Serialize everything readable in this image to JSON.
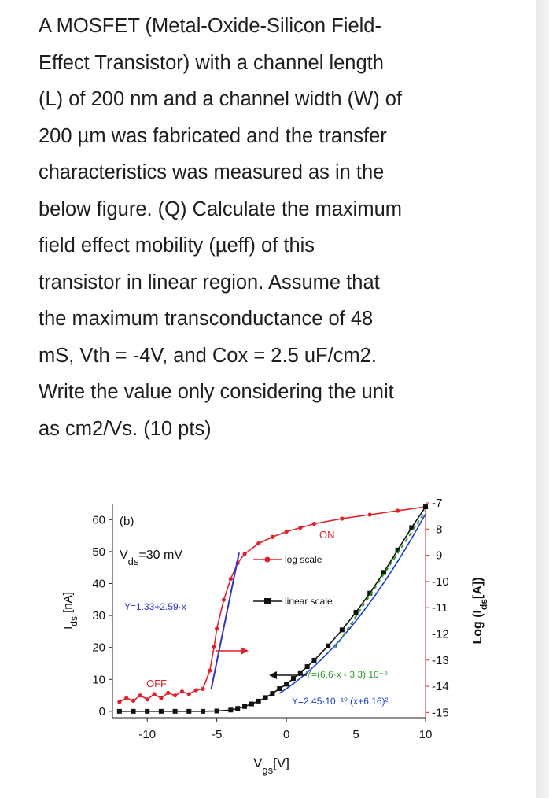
{
  "question": {
    "lines": [
      "A MOSFET (Metal-Oxide-Silicon Field-",
      "Effect Transistor) with a channel length",
      "(L) of 200 nm and a channel width (W) of",
      "200 µm was fabricated and the transfer",
      "characteristics was measured as in the",
      "below figure. (Q) Calculate the maximum",
      "field effect mobility (µeff) of this",
      "transistor in linear region. Assume that",
      "the maximum transconductance of 48",
      "mS, Vth = -4V, and Cox = 2.5 uF/cm2.",
      "Write the value only considering the unit",
      "as cm2/Vs. (10 pts)"
    ]
  },
  "chart_data": {
    "type": "line",
    "panel_label": "(b)",
    "condition": {
      "main": "V",
      "sub": "ds",
      "rest": "=30 mV"
    },
    "xlabel": {
      "main": "V",
      "sub": "gs",
      "rest": "[V]"
    },
    "ylabel_left": {
      "main": "I",
      "sub": "ds",
      "rest": " [nA]"
    },
    "ylabel_right": {
      "pre": "Log (I",
      "sub": "ds",
      "rest": "[A])"
    },
    "xlim": [
      -12.5,
      10
    ],
    "ylim_left": [
      -2,
      65
    ],
    "ylim_right": [
      -15.2,
      -7.03
    ],
    "x_ticks": [
      -10,
      -5,
      0,
      5,
      10
    ],
    "x_tick_labels": [
      "-10",
      "-5",
      "0",
      "5",
      "10"
    ],
    "y_left_ticks": [
      0,
      10,
      20,
      30,
      40,
      50,
      60
    ],
    "y_left_tick_labels": [
      "0",
      "10",
      "20",
      "30",
      "40",
      "50",
      "60"
    ],
    "y_right_ticks": [
      -15,
      -14,
      -13,
      -12,
      -11,
      -10,
      -9,
      -8,
      -7
    ],
    "y_right_tick_labels": [
      "-15",
      "-14",
      "-13",
      "-12",
      "-11",
      "-10",
      "-9",
      "-8",
      "-7"
    ],
    "legend": [
      {
        "name": "log scale",
        "color": "#e0202a",
        "marker": "circle"
      },
      {
        "name": "linear scale",
        "color": "#111111",
        "marker": "square"
      }
    ],
    "series": [
      {
        "name": "log scale",
        "axis": "right",
        "color": "#e0202a",
        "x": [
          -12,
          -11.5,
          -11,
          -10.5,
          -10,
          -9.5,
          -9,
          -8.5,
          -8,
          -7.5,
          -7,
          -6.5,
          -6,
          -5.5,
          -5.2,
          -5,
          -4.5,
          -4,
          -3.5,
          -3,
          -2,
          -1,
          0,
          1,
          2,
          4,
          6,
          8,
          10
        ],
        "y": [
          -14.6,
          -14.45,
          -14.55,
          -14.35,
          -14.5,
          -14.3,
          -14.45,
          -14.25,
          -14.35,
          -14.2,
          -14.3,
          -14.15,
          -14.1,
          -13.4,
          -12.5,
          -11.8,
          -10.7,
          -9.9,
          -9.3,
          -8.95,
          -8.55,
          -8.3,
          -8.1,
          -7.95,
          -7.8,
          -7.6,
          -7.45,
          -7.3,
          -7.15
        ]
      },
      {
        "name": "linear scale",
        "axis": "left",
        "color": "#111111",
        "x": [
          -12,
          -11,
          -10,
          -9,
          -8,
          -7,
          -6,
          -5,
          -4,
          -3.5,
          -3,
          -2.5,
          -2,
          -1.5,
          -1,
          -0.5,
          0,
          0.5,
          1,
          1.5,
          2,
          3,
          4,
          5,
          6,
          7,
          8,
          9,
          10
        ],
        "y": [
          0,
          0,
          0,
          0,
          0,
          0,
          0,
          0.1,
          0.4,
          0.9,
          1.5,
          2.3,
          3.2,
          4.3,
          5.6,
          7.1,
          8.5,
          10.3,
          12.1,
          14,
          16,
          20.5,
          25.5,
          31,
          37,
          43.5,
          50.5,
          57.5,
          64
        ]
      }
    ],
    "fits": [
      {
        "label": "Y=1.33+2.59·x",
        "color": "#3333cc",
        "axis": "right",
        "x": [
          -5.4,
          -3.4
        ]
      },
      {
        "label": "Y=2.45·10⁻¹⁰ (x+6.16)²",
        "color": "#1a3fd6",
        "axis": "left",
        "x": [
          -0.5,
          10
        ]
      },
      {
        "label": "Y=(6.6·x - 3.3) 10⁻⁹",
        "color": "#2a9a2a",
        "axis": "left",
        "x": [
          3.5,
          10
        ]
      }
    ],
    "annotations": [
      "ON",
      "OFF"
    ]
  }
}
